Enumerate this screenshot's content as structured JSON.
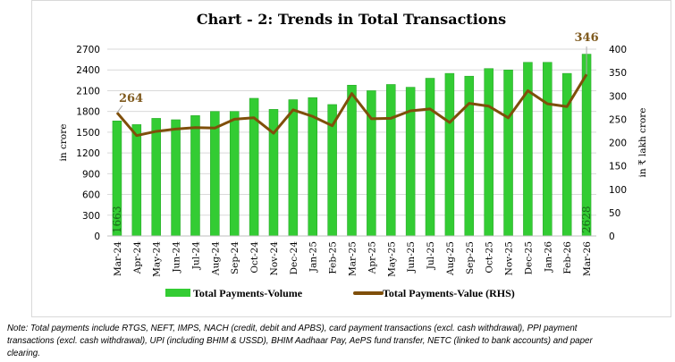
{
  "chart_data": {
    "type": "bar+line",
    "title": "Chart - 2: Trends in Total Transactions",
    "ylabel": "in crore",
    "y2label": "in ₹ lakh crore",
    "ylim": [
      0,
      2700
    ],
    "yticks": [
      0,
      300,
      600,
      900,
      1200,
      1500,
      1800,
      2100,
      2400,
      2700
    ],
    "y2lim": [
      0,
      400
    ],
    "y2ticks": [
      0,
      50,
      100,
      150,
      200,
      250,
      300,
      350,
      400
    ],
    "grid": true,
    "legend_position": "bottom",
    "categories": [
      "Mar-24",
      "Apr-24",
      "May-24",
      "Jun-24",
      "Jul-24",
      "Aug-24",
      "Sep-24",
      "Oct-24",
      "Nov-24",
      "Dec-24",
      "Jan-25",
      "Feb-25",
      "Mar-25",
      "Apr-25",
      "May-25",
      "Jun-25",
      "Jul-25",
      "Aug-25",
      "Sep-25",
      "Oct-25",
      "Nov-25",
      "Dec-25",
      "Jan-26",
      "Feb-26",
      "Mar-26"
    ],
    "series": [
      {
        "name": "Total Payments-Volume",
        "type": "bar",
        "axis": "left",
        "color": "#33cc33",
        "values": [
          1663,
          1610,
          1700,
          1680,
          1740,
          1800,
          1800,
          1990,
          1830,
          1970,
          2000,
          1900,
          2180,
          2100,
          2190,
          2150,
          2280,
          2350,
          2310,
          2420,
          2400,
          2510,
          2510,
          2350,
          2628
        ],
        "labels": {
          "first": "1663",
          "last": "2628"
        }
      },
      {
        "name": "Total Payments-Value (RHS)",
        "type": "line",
        "axis": "right",
        "color": "#7f4f0a",
        "values": [
          264,
          215,
          224,
          229,
          232,
          231,
          250,
          253,
          220,
          270,
          256,
          236,
          305,
          251,
          252,
          268,
          272,
          243,
          284,
          278,
          253,
          311,
          283,
          277,
          346
        ],
        "labels": {
          "first": "264",
          "last": "346"
        }
      }
    ]
  },
  "note": "Note: Total payments include RTGS, NEFT, IMPS, NACH (credit, debit and APBS), card payment transactions (excl. cash withdrawal), PPI payment transactions (excl. cash withdrawal), UPI (including BHIM & USSD), BHIM Aadhaar Pay, AePS fund transfer, NETC (linked to bank accounts) and paper clearing."
}
